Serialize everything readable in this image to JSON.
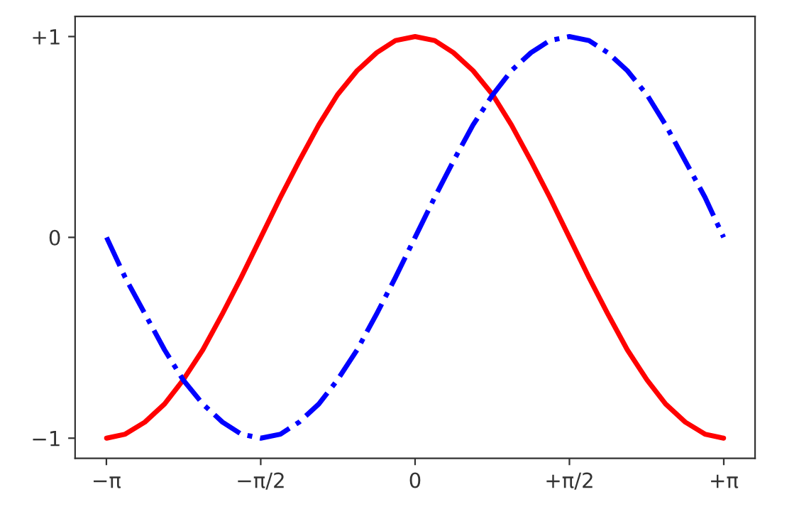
{
  "chart_data": {
    "type": "line",
    "x": [
      -3.14,
      -2.95,
      -2.75,
      -2.55,
      -2.36,
      -2.16,
      -1.96,
      -1.77,
      -1.57,
      -1.37,
      -1.18,
      -0.98,
      -0.79,
      -0.59,
      -0.39,
      -0.2,
      0,
      0.2,
      0.39,
      0.59,
      0.79,
      0.98,
      1.18,
      1.37,
      1.57,
      1.77,
      1.96,
      2.16,
      2.36,
      2.55,
      2.75,
      2.95,
      3.14
    ],
    "series": [
      {
        "color": "#ff0000",
        "line_style": "solid",
        "values": [
          -1,
          -0.98,
          -0.92,
          -0.83,
          -0.71,
          -0.56,
          -0.38,
          -0.2,
          0,
          0.2,
          0.38,
          0.56,
          0.71,
          0.83,
          0.92,
          0.98,
          1,
          0.98,
          0.92,
          0.83,
          0.71,
          0.56,
          0.38,
          0.2,
          0,
          -0.2,
          -0.38,
          -0.56,
          -0.71,
          -0.83,
          -0.92,
          -0.98,
          -1
        ]
      },
      {
        "color": "#0000ff",
        "line_style": "dashdot",
        "values": [
          0,
          -0.2,
          -0.38,
          -0.56,
          -0.71,
          -0.83,
          -0.92,
          -0.98,
          -1,
          -0.98,
          -0.92,
          -0.83,
          -0.71,
          -0.56,
          -0.38,
          -0.2,
          0,
          0.2,
          0.38,
          0.56,
          0.71,
          0.83,
          0.92,
          0.98,
          1,
          0.98,
          0.92,
          0.83,
          0.71,
          0.56,
          0.38,
          0.2,
          0
        ]
      }
    ],
    "xlim": [
      -3.46,
      3.46
    ],
    "ylim": [
      -1.1,
      1.1
    ],
    "xticks": [
      {
        "value": -3.14159,
        "label": "−π"
      },
      {
        "value": -1.5708,
        "label": "−π/2"
      },
      {
        "value": 0,
        "label": "0"
      },
      {
        "value": 1.5708,
        "label": "+π/2"
      },
      {
        "value": 3.14159,
        "label": "+π"
      }
    ],
    "yticks": [
      {
        "value": -1,
        "label": "−1"
      },
      {
        "value": 0,
        "label": "0"
      },
      {
        "value": 1,
        "label": "+1"
      }
    ],
    "grid": false,
    "legend": false
  }
}
